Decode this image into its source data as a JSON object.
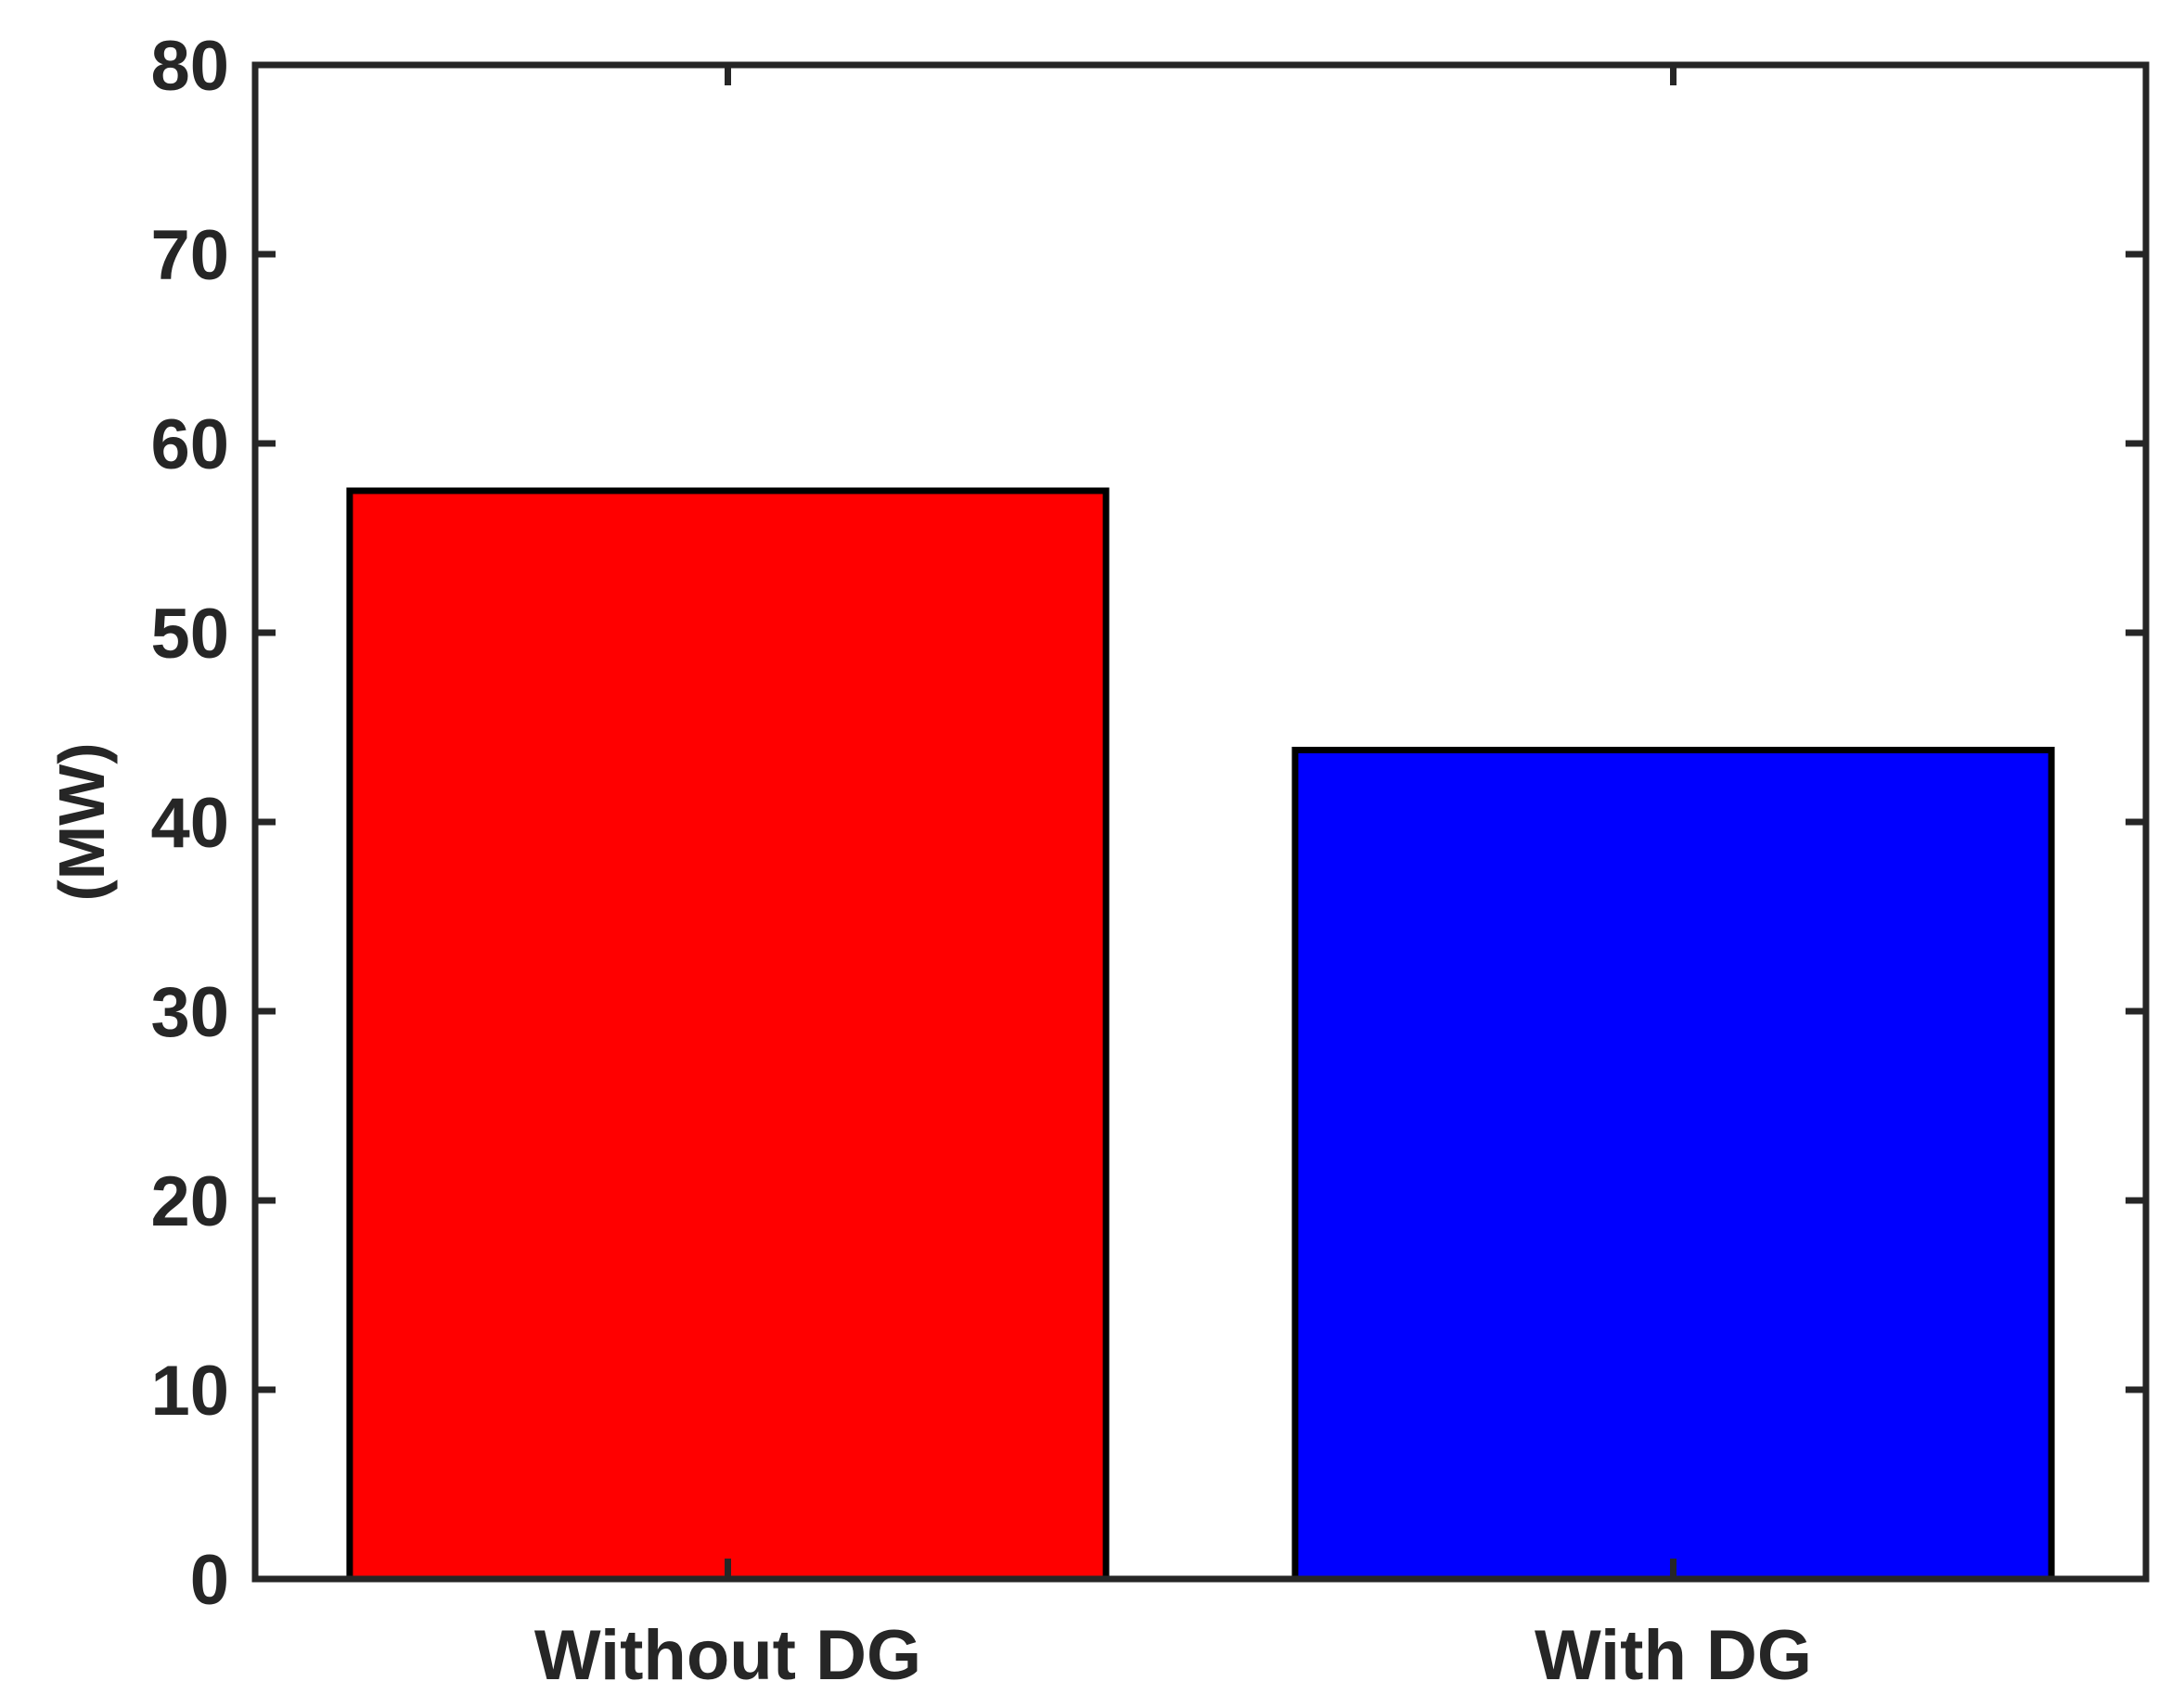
{
  "chart_data": {
    "type": "bar",
    "title": "",
    "xlabel": "",
    "ylabel": "(MW)",
    "categories": [
      "Without DG",
      "With DG"
    ],
    "values": [
      57.5,
      43.8
    ],
    "bar_colors": [
      "#ff0000",
      "#0000ff"
    ],
    "edge_color": "#000000",
    "ylim": [
      0,
      80
    ],
    "yticks": [
      0,
      10,
      20,
      30,
      40,
      50,
      60,
      70,
      80
    ],
    "ytick_labels": [
      "0",
      "10",
      "20",
      "30",
      "40",
      "50",
      "60",
      "70",
      "80"
    ],
    "grid": false,
    "legend": "none",
    "box": true
  }
}
